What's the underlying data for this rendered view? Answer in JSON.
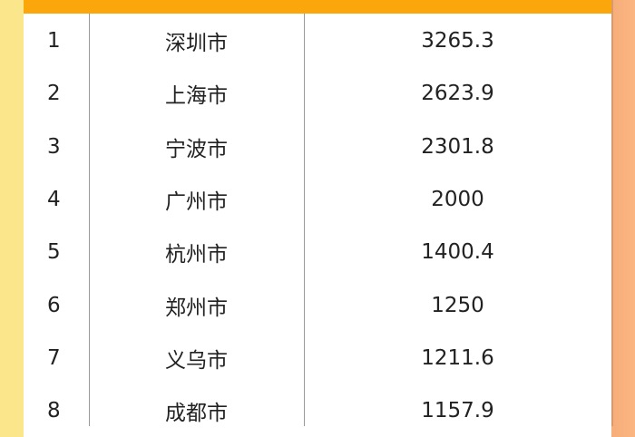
{
  "table": {
    "rows": [
      {
        "rank": "1",
        "city": "深圳市",
        "value": "3265.3"
      },
      {
        "rank": "2",
        "city": "上海市",
        "value": "2623.9"
      },
      {
        "rank": "3",
        "city": "宁波市",
        "value": "2301.8"
      },
      {
        "rank": "4",
        "city": "广州市",
        "value": "2000"
      },
      {
        "rank": "5",
        "city": "杭州市",
        "value": "1400.4"
      },
      {
        "rank": "6",
        "city": "郑州市",
        "value": "1250"
      },
      {
        "rank": "7",
        "city": "义乌市",
        "value": "1211.6"
      },
      {
        "rank": "8",
        "city": "成都市",
        "value": "1157.9"
      }
    ]
  },
  "colors": {
    "header": "#fba70c",
    "left_bg": "#fbe68c",
    "right_bg": "#fbb580"
  }
}
